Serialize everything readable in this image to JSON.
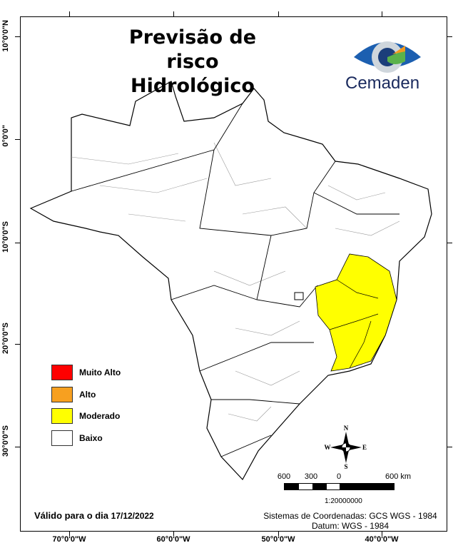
{
  "title": {
    "line1": "Previsão de risco",
    "line2": "Hidrológico"
  },
  "logo": {
    "text": "Cemaden"
  },
  "axes": {
    "latitude_labels": [
      "10°0'0\"N",
      "0°0'0\"",
      "10°0'0\"S",
      "20°0'0\"S",
      "30°0'0\"S"
    ],
    "longitude_labels": [
      "70°0'0\"W",
      "60°0'0\"W",
      "50°0'0\"W",
      "40°0'0\"W"
    ]
  },
  "legend": {
    "items": [
      {
        "label": "Muito Alto",
        "color": "#ff0000"
      },
      {
        "label": "Alto",
        "color": "#f7a020"
      },
      {
        "label": "Moderado",
        "color": "#ffff00"
      },
      {
        "label": "Baixo",
        "color": "#ffffff"
      }
    ]
  },
  "map": {
    "highlighted_level": "Moderado",
    "highlighted_region": "Bahia / Minas Gerais / Espírito Santo / Rio de Janeiro",
    "base_color": "#ffffff",
    "highlight_color": "#ffff00"
  },
  "validity": {
    "prefix": "Válido para o dia",
    "date": "17/12/2022"
  },
  "compass": {
    "n": "N",
    "s": "S",
    "e": "E",
    "w": "W"
  },
  "scale": {
    "labels": [
      "600",
      "300",
      "0",
      "600 km"
    ],
    "ratio": "1:20000000"
  },
  "coordinates": {
    "system": "Sistemas de Coordenadas: GCS WGS - 1984",
    "datum": "Datum: WGS - 1984"
  }
}
